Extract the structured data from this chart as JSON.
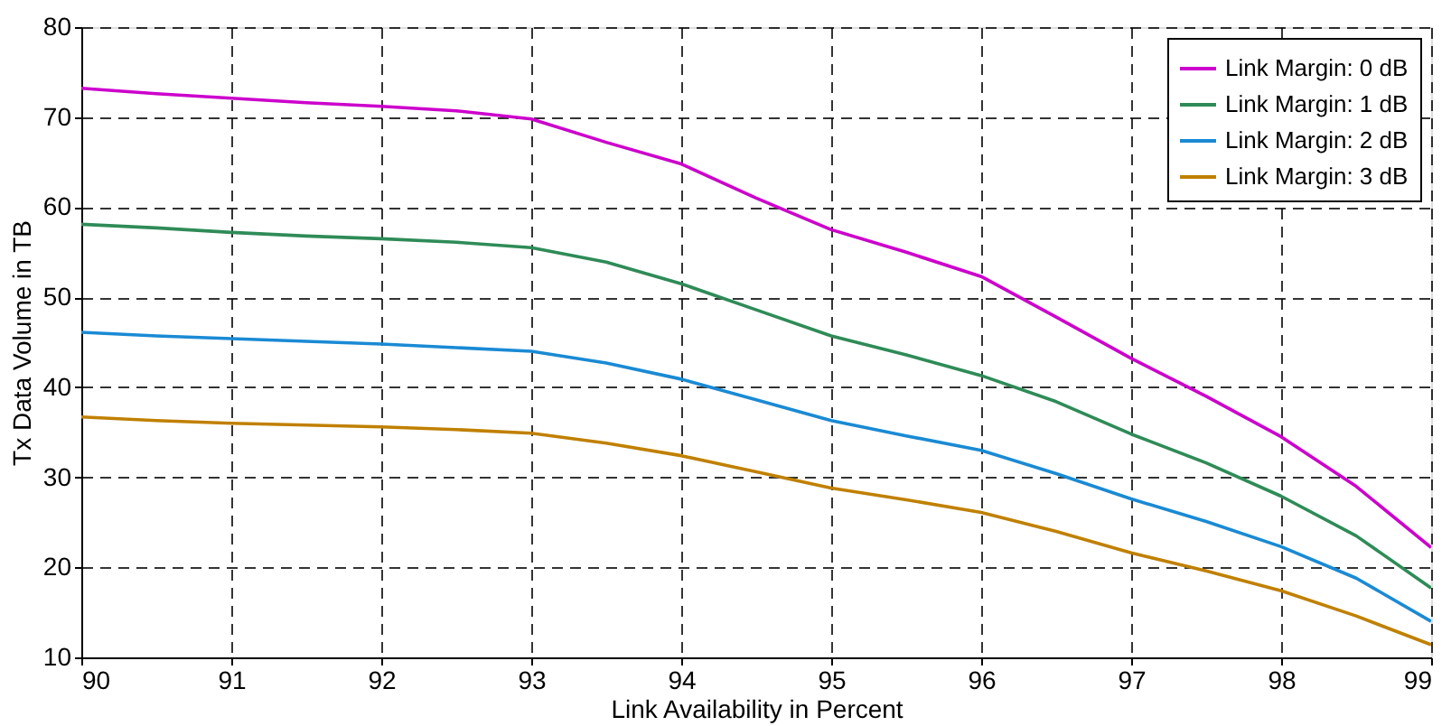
{
  "chart_data": {
    "type": "line",
    "xlabel": "Link Availability in Percent",
    "ylabel": "Tx Data Volume in TB",
    "x": [
      90,
      90.5,
      91,
      91.5,
      92,
      92.5,
      93,
      93.5,
      94,
      94.5,
      95,
      95.5,
      96,
      96.5,
      97,
      97.5,
      98,
      98.5,
      99
    ],
    "series": [
      {
        "name": "Link Margin: 0 dB",
        "color": "#cc00cc",
        "values": [
          73.2,
          72.6,
          72.1,
          71.6,
          71.2,
          70.7,
          69.8,
          67.2,
          64.8,
          61,
          57.5,
          55,
          52.3,
          47.8,
          43.2,
          39,
          34.5,
          29,
          22.2
        ]
      },
      {
        "name": "Link Margin: 1 dB",
        "color": "#2e8b57",
        "values": [
          58.1,
          57.7,
          57.2,
          56.8,
          56.5,
          56.1,
          55.5,
          53.9,
          51.5,
          48.6,
          45.7,
          43.6,
          41.3,
          38.4,
          34.8,
          31.6,
          27.9,
          23.5,
          17.7
        ]
      },
      {
        "name": "Link Margin: 2 dB",
        "color": "#1a8ad4",
        "values": [
          46.1,
          45.7,
          45.4,
          45.1,
          44.8,
          44.4,
          44,
          42.7,
          40.9,
          38.6,
          36.3,
          34.6,
          33,
          30.4,
          27.6,
          25.1,
          22.3,
          18.8,
          14
        ]
      },
      {
        "name": "Link Margin: 3 dB",
        "color": "#c08000",
        "values": [
          36.7,
          36.3,
          36,
          35.8,
          35.6,
          35.3,
          34.9,
          33.8,
          32.4,
          30.6,
          28.8,
          27.5,
          26.1,
          24,
          21.6,
          19.6,
          17.4,
          14.6,
          11.4
        ]
      }
    ],
    "xlim": [
      90,
      99
    ],
    "xticks": [
      90,
      91,
      92,
      93,
      94,
      95,
      96,
      97,
      98,
      99
    ],
    "ylim": [
      10,
      80
    ],
    "yticks": [
      10,
      20,
      30,
      40,
      50,
      60,
      70,
      80
    ],
    "grid": true,
    "legend": "top right",
    "marker": "none",
    "line_style": "solid"
  }
}
